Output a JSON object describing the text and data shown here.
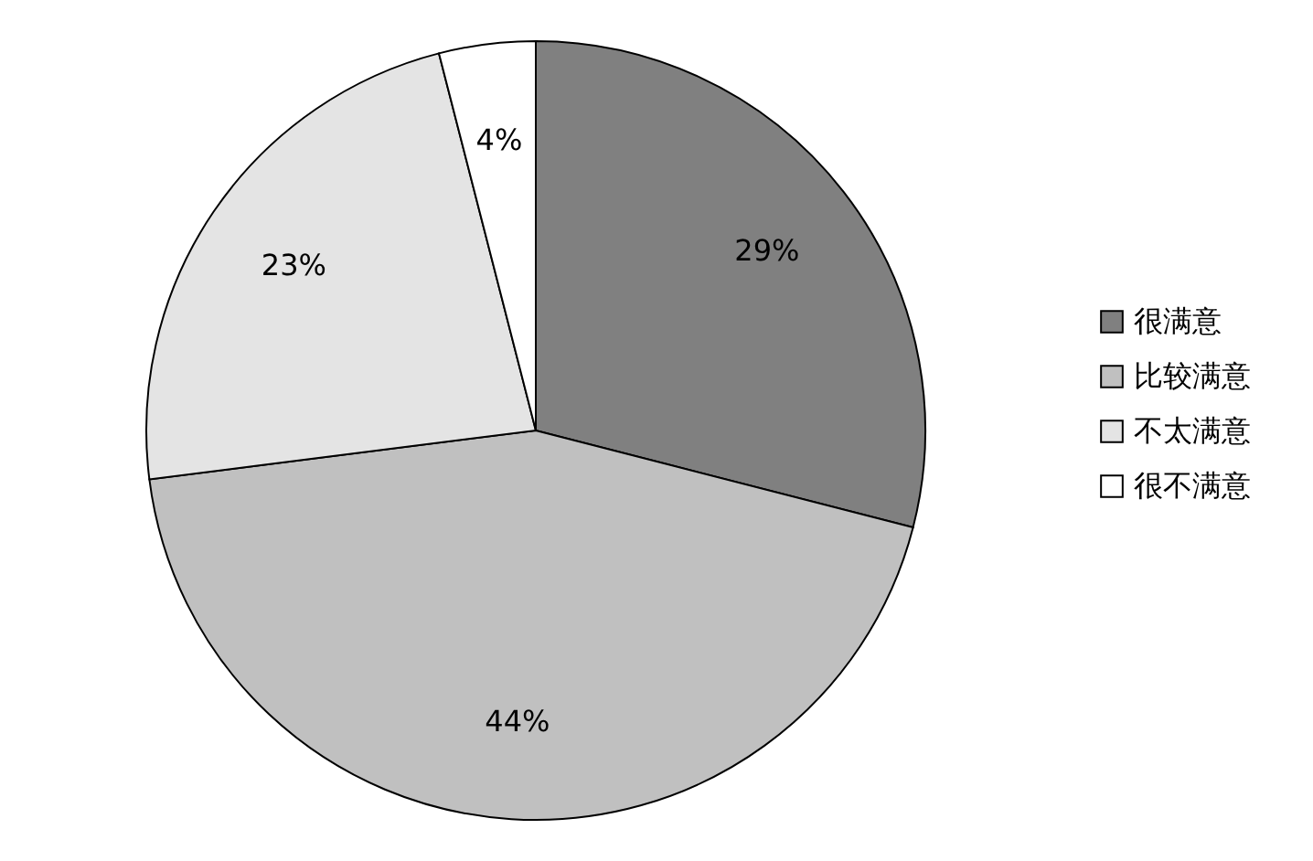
{
  "chart_data": {
    "type": "pie",
    "categories": [
      "很满意",
      "比较满意",
      "不太满意",
      "很不满意"
    ],
    "values": [
      29,
      44,
      23,
      4
    ],
    "colors": [
      "#808080",
      "#c0c0c0",
      "#e4e4e4",
      "#ffffff"
    ],
    "value_labels": [
      "29%",
      "44%",
      "23%",
      "4%"
    ],
    "legend": "right"
  }
}
